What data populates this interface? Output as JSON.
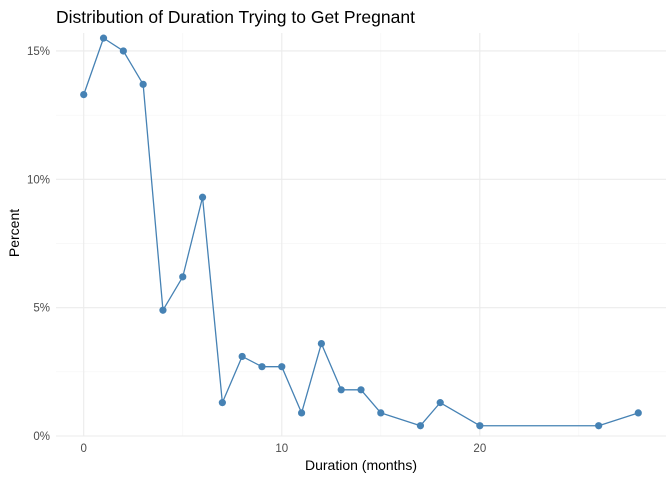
{
  "chart_data": {
    "type": "line",
    "title": "Distribution of Duration Trying to Get Pregnant",
    "xlabel": "Duration (months)",
    "ylabel": "Percent",
    "xlim": [
      -1.4,
      29.4
    ],
    "ylim": [
      0,
      0.157
    ],
    "x_ticks": [
      0,
      10,
      20
    ],
    "x_tick_labels": [
      "0",
      "10",
      "20"
    ],
    "y_ticks": [
      0,
      0.05,
      0.1,
      0.15
    ],
    "y_tick_labels": [
      "0%",
      "5%",
      "10%",
      "15%"
    ],
    "grid": true,
    "color": "#4682b4",
    "series": [
      {
        "x": [
          0,
          1,
          2,
          3,
          4,
          5,
          6,
          7,
          8,
          9,
          10,
          11,
          12,
          13,
          14,
          15,
          17,
          18,
          20,
          26,
          28
        ],
        "y": [
          0.133,
          0.155,
          0.15,
          0.137,
          0.049,
          0.062,
          0.093,
          0.013,
          0.031,
          0.027,
          0.027,
          0.009,
          0.036,
          0.018,
          0.018,
          0.009,
          0.004,
          0.013,
          0.004,
          0.004,
          0.009
        ]
      }
    ]
  }
}
